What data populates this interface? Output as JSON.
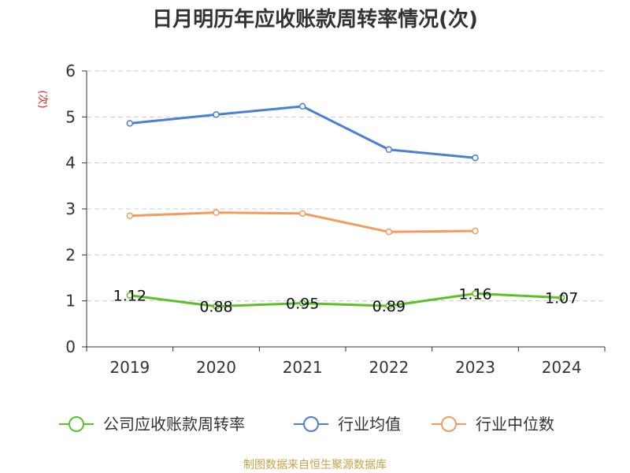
{
  "chart_data": {
    "type": "line",
    "title": "日月明历年应收账款周转率情况(次)",
    "ylabel": "(次)",
    "xlabel": "",
    "categories": [
      "2019",
      "2020",
      "2021",
      "2022",
      "2023",
      "2024"
    ],
    "ylim": [
      0,
      6
    ],
    "yticks": [
      0,
      1,
      2,
      3,
      4,
      5,
      6
    ],
    "grid": true,
    "legend_position": "bottom",
    "series": [
      {
        "name": "公司应收账款周转率",
        "color": "#5cc128",
        "values": [
          1.12,
          0.88,
          0.95,
          0.89,
          1.16,
          1.07
        ],
        "labels": [
          "1.12",
          "0.88",
          "0.95",
          "0.89",
          "1.16",
          "1.07"
        ]
      },
      {
        "name": "行业均值",
        "color": "#4a7fd6",
        "values": [
          4.86,
          5.05,
          5.23,
          4.29,
          4.11,
          null
        ]
      },
      {
        "name": "行业中位数",
        "color": "#f59a5f",
        "values": [
          2.85,
          2.92,
          2.9,
          2.5,
          2.52,
          null
        ]
      }
    ]
  },
  "footer": "制图数据来自恒生聚源数据库"
}
